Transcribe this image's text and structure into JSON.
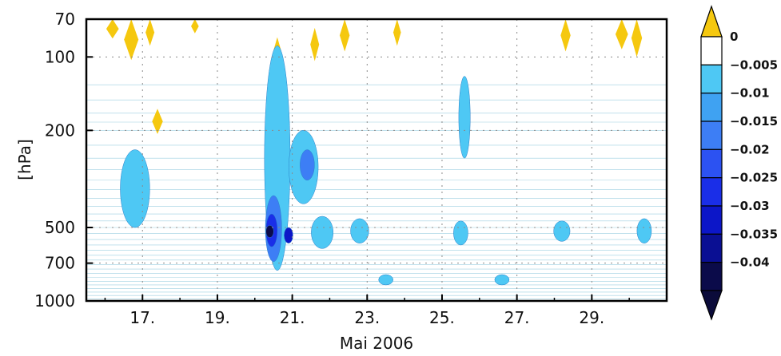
{
  "chart_data": {
    "type": "heatmap",
    "subtype": "filled-contour",
    "xlabel": "Mai 2006",
    "ylabel": "[hPa]",
    "x_ticks": [
      "17.",
      "19.",
      "21.",
      "23.",
      "25.",
      "27.",
      "29."
    ],
    "x_tick_days": [
      17,
      19,
      21,
      23,
      25,
      27,
      29
    ],
    "xlim_days": [
      15.5,
      31
    ],
    "y_ticks": [
      "70",
      "100",
      "200",
      "500",
      "700",
      "1000"
    ],
    "y_tick_values": [
      70,
      100,
      200,
      500,
      700,
      1000
    ],
    "ylim": [
      1000,
      70
    ],
    "y_scale": "log",
    "grid": "dotted",
    "colorbar": {
      "position": "right",
      "labels": [
        "0",
        "−0.005",
        "−0.01",
        "−0.015",
        "−0.02",
        "−0.025",
        "−0.03",
        "−0.035",
        "−0.04"
      ],
      "levels": [
        0,
        -0.005,
        -0.01,
        -0.015,
        -0.02,
        -0.025,
        -0.03,
        -0.035,
        -0.04
      ],
      "colors": [
        "#ffffff",
        "#4ec8f4",
        "#3fa2f2",
        "#3d7ef5",
        "#2c52f2",
        "#1a2ee8",
        "#0c16c8",
        "#0a0f93",
        "#0b0b4a"
      ],
      "over_color": "#f5c80f",
      "under_color": "#0b0b3a"
    },
    "regions": [
      {
        "level": 0,
        "day": 16.2,
        "p": 72,
        "day_w": 0.25,
        "p_half": 12
      },
      {
        "level": 0,
        "day": 16.7,
        "p": 85,
        "day_w": 0.3,
        "p_half": 18
      },
      {
        "level": 0,
        "day": 17.2,
        "p": 80,
        "day_w": 0.15,
        "p_half": 10
      },
      {
        "level": 0,
        "day": 17.4,
        "p": 185,
        "day_w": 0.2,
        "p_half": 22
      },
      {
        "level": 0,
        "day": 18.4,
        "p": 72,
        "day_w": 0.12,
        "p_half": 8
      },
      {
        "level": 0,
        "day": 20.6,
        "p": 95,
        "day_w": 0.12,
        "p_half": 12
      },
      {
        "level": 0,
        "day": 21.6,
        "p": 90,
        "day_w": 0.15,
        "p_half": 14
      },
      {
        "level": 0,
        "day": 22.4,
        "p": 80,
        "day_w": 0.18,
        "p_half": 15
      },
      {
        "level": 0,
        "day": 23.8,
        "p": 80,
        "day_w": 0.12,
        "p_half": 10
      },
      {
        "level": 0,
        "day": 28.3,
        "p": 80,
        "day_w": 0.18,
        "p_half": 15
      },
      {
        "level": 0,
        "day": 29.8,
        "p": 78,
        "day_w": 0.25,
        "p_half": 15
      },
      {
        "level": 0,
        "day": 30.2,
        "p": 85,
        "day_w": 0.2,
        "p_half": 15
      },
      {
        "level": -0.005,
        "day": 16.8,
        "p": 370,
        "day_w": 0.7,
        "p_half": 130
      },
      {
        "level": -0.005,
        "day": 20.6,
        "p": 420,
        "day_w": 0.6,
        "p_half": 330
      },
      {
        "level": -0.005,
        "day": 21.3,
        "p": 300,
        "day_w": 0.7,
        "p_half": 100
      },
      {
        "level": -0.005,
        "day": 21.8,
        "p": 530,
        "day_w": 0.5,
        "p_half": 80
      },
      {
        "level": -0.005,
        "day": 22.8,
        "p": 520,
        "day_w": 0.4,
        "p_half": 60
      },
      {
        "level": -0.005,
        "day": 25.6,
        "p": 190,
        "day_w": 0.22,
        "p_half": 70
      },
      {
        "level": -0.005,
        "day": 25.5,
        "p": 530,
        "day_w": 0.3,
        "p_half": 60
      },
      {
        "level": -0.005,
        "day": 28.2,
        "p": 520,
        "day_w": 0.35,
        "p_half": 50
      },
      {
        "level": -0.005,
        "day": 30.4,
        "p": 520,
        "day_w": 0.3,
        "p_half": 60
      },
      {
        "level": -0.005,
        "day": 23.5,
        "p": 820,
        "day_w": 0.3,
        "p_half": 40
      },
      {
        "level": -0.005,
        "day": 26.6,
        "p": 820,
        "day_w": 0.3,
        "p_half": 40
      },
      {
        "level": -0.015,
        "day": 20.5,
        "p": 530,
        "day_w": 0.35,
        "p_half": 160
      },
      {
        "level": -0.015,
        "day": 21.4,
        "p": 280,
        "day_w": 0.3,
        "p_half": 40
      },
      {
        "level": -0.025,
        "day": 20.45,
        "p": 520,
        "day_w": 0.22,
        "p_half": 80
      },
      {
        "level": -0.03,
        "day": 20.9,
        "p": 540,
        "day_w": 0.15,
        "p_half": 40
      },
      {
        "level": -0.04,
        "day": 20.4,
        "p": 520,
        "day_w": 0.12,
        "p_half": 30
      }
    ]
  }
}
